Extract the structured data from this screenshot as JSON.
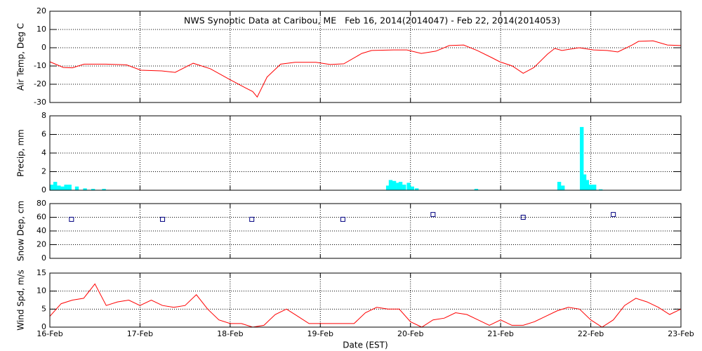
{
  "chart_data": [
    {
      "type": "line",
      "title": "NWS Synoptic Data at Caribou, ME   Feb 16, 2014(2014047) - Feb 22, 2014(2014053)",
      "ylabel": "Air Temp, Deg C",
      "color": "#ff0000",
      "grid": true,
      "x": [
        0,
        0.15,
        0.25,
        0.38,
        0.62,
        0.85,
        1.01,
        1.24,
        1.39,
        1.59,
        1.78,
        1.98,
        2.17,
        2.25,
        2.3,
        2.41,
        2.56,
        2.72,
        2.95,
        3.11,
        3.26,
        3.46,
        3.57,
        3.81,
        3.96,
        4.12,
        4.28,
        4.43,
        4.59,
        4.74,
        4.9,
        4.99,
        5.13,
        5.25,
        5.37,
        5.52,
        5.6,
        5.68,
        5.87,
        6.03,
        6.18,
        6.3,
        6.46,
        6.53,
        6.69,
        6.85,
        7.0
      ],
      "values": [
        -7.7,
        -10.8,
        -11,
        -9,
        -9,
        -9.4,
        -12.3,
        -12.7,
        -13.5,
        -8.5,
        -11.5,
        -17,
        -22,
        -24,
        -27,
        -16,
        -9,
        -8,
        -8,
        -9.2,
        -8.8,
        -3.1,
        -1.5,
        -1.2,
        -1.2,
        -3.1,
        -1.9,
        1.2,
        1.5,
        -1.5,
        -5.4,
        -7.7,
        -10,
        -14,
        -10.8,
        -3.5,
        -0.4,
        -1.5,
        0,
        -1.2,
        -1.5,
        -2.3,
        1.5,
        3.5,
        3.8,
        1.5,
        1.2
      ],
      "xlim": [
        0,
        7
      ],
      "xticks": [
        0,
        1,
        2,
        3,
        4,
        5,
        6,
        7
      ],
      "ylim": [
        -30,
        20
      ],
      "yticks": [
        -30,
        -20,
        -10,
        0,
        10,
        20
      ]
    },
    {
      "type": "bar",
      "ylabel": "Precip, mm",
      "color": "#00ffff",
      "grid": true,
      "x": [
        0.02,
        0.06,
        0.1,
        0.14,
        0.18,
        0.22,
        0.3,
        0.39,
        0.48,
        0.6,
        3.75,
        3.78,
        3.82,
        3.86,
        3.89,
        3.93,
        3.98,
        4.02,
        4.07,
        4.73,
        5.65,
        5.69,
        5.9,
        5.93,
        5.96,
        6.0,
        6.04,
        6.11
      ],
      "values": [
        0.6,
        0.9,
        0.5,
        0.4,
        0.6,
        0.6,
        0.4,
        0.2,
        0.15,
        0.15,
        0.5,
        1.1,
        1.0,
        0.8,
        0.9,
        0.6,
        0.8,
        0.4,
        0.2,
        0.15,
        0.9,
        0.5,
        6.8,
        1.7,
        1.1,
        0.6,
        0.6,
        0.1
      ],
      "xlim": [
        0,
        7
      ],
      "xticks": [
        0,
        1,
        2,
        3,
        4,
        5,
        6,
        7
      ],
      "ylim": [
        0,
        8
      ],
      "yticks": [
        0,
        2,
        4,
        6,
        8
      ]
    },
    {
      "type": "scatter",
      "ylabel": "Snow Dep, cm",
      "color": "#000080",
      "grid": true,
      "x": [
        0.24,
        1.25,
        2.24,
        3.25,
        4.25,
        5.25,
        6.25
      ],
      "values": [
        57,
        57,
        57,
        57,
        64,
        60,
        64
      ],
      "xlim": [
        0,
        7
      ],
      "xticks": [
        0,
        1,
        2,
        3,
        4,
        5,
        6,
        7
      ],
      "ylim": [
        0,
        80
      ],
      "yticks": [
        0,
        20,
        40,
        60,
        80
      ]
    },
    {
      "type": "line",
      "ylabel": "Wind Spd, m/s",
      "xlabel": "Date (EST)",
      "color": "#ff0000",
      "grid": true,
      "x": [
        0,
        0.125,
        0.25,
        0.375,
        0.5,
        0.625,
        0.75,
        0.875,
        1,
        1.125,
        1.25,
        1.375,
        1.5,
        1.625,
        1.75,
        1.875,
        2,
        2.125,
        2.25,
        2.375,
        2.5,
        2.625,
        2.75,
        2.875,
        3,
        3.125,
        3.25,
        3.375,
        3.5,
        3.625,
        3.75,
        3.875,
        4,
        4.125,
        4.25,
        4.375,
        4.5,
        4.625,
        4.75,
        4.875,
        5,
        5.125,
        5.25,
        5.375,
        5.5,
        5.625,
        5.75,
        5.875,
        6,
        6.125,
        6.25,
        6.375,
        6.5,
        6.625,
        6.75,
        6.875,
        7
      ],
      "values": [
        3,
        6.5,
        7.5,
        8,
        12,
        6,
        7,
        7.5,
        6,
        7.5,
        6,
        5.5,
        6,
        9,
        5,
        2,
        1,
        1,
        0,
        0.5,
        3.5,
        5,
        3,
        1,
        1,
        1,
        1,
        1,
        4,
        5.5,
        5,
        5,
        1.5,
        0,
        2,
        2.5,
        4,
        3.5,
        2,
        0.5,
        2,
        0.5,
        0.5,
        1.5,
        3,
        4.5,
        5.5,
        5,
        2,
        0,
        2,
        6,
        8,
        7,
        5.5,
        3.5,
        5
      ],
      "xlim": [
        0,
        7
      ],
      "xticks": [
        {
          "value": 0,
          "label": "16-Feb"
        },
        {
          "value": 1,
          "label": "17-Feb"
        },
        {
          "value": 2,
          "label": "18-Feb"
        },
        {
          "value": 3,
          "label": "19-Feb"
        },
        {
          "value": 4,
          "label": "20-Feb"
        },
        {
          "value": 5,
          "label": "21-Feb"
        },
        {
          "value": 6,
          "label": "22-Feb"
        },
        {
          "value": 7,
          "label": "23-Feb"
        }
      ],
      "ylim": [
        0,
        15
      ],
      "yticks": [
        0,
        5,
        10,
        15
      ]
    }
  ]
}
